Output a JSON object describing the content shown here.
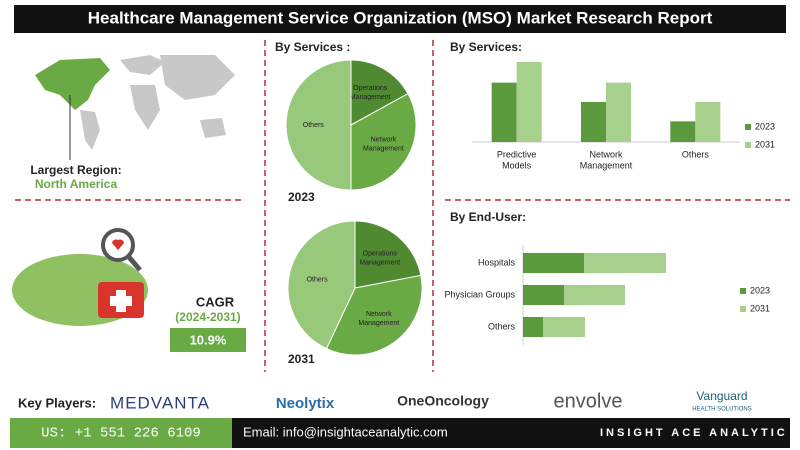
{
  "header": {
    "title": "Healthcare Management Service Organization (MSO) Market Research Report"
  },
  "region": {
    "label": "Largest Region:",
    "value": "North America"
  },
  "cagr": {
    "label": "CAGR",
    "period": "(2024-2031)",
    "value": "10.9%"
  },
  "key_players": {
    "label": "Key Players:",
    "names": [
      "MEDVANTA",
      "Neolytix",
      "OneOncology",
      "envolve",
      "Vanguard"
    ],
    "vanguard_sub": "HEALTH SOLUTIONS"
  },
  "footer": {
    "phone": "US: +1 551 226 6109",
    "email": "Email: info@insightaceanalytic.com",
    "brand": "INSIGHT ACE ANALYTIC"
  },
  "chart_data": [
    {
      "type": "pie",
      "title": "By Services :",
      "caption": "2023",
      "categories": [
        "Operations Management",
        "Network Management",
        "Others"
      ],
      "values": [
        17,
        33,
        50
      ],
      "colors": [
        "#4f8a30",
        "#6aaa45",
        "#98c97a"
      ]
    },
    {
      "type": "pie",
      "caption": "2031",
      "categories": [
        "Operations Management",
        "Network Management",
        "Others"
      ],
      "values": [
        22,
        35,
        43
      ],
      "colors": [
        "#4f8a30",
        "#6aaa45",
        "#98c97a"
      ]
    },
    {
      "type": "bar",
      "title": "By Services:",
      "categories": [
        "Predictive Models",
        "Network Management",
        "Others"
      ],
      "series": [
        {
          "name": "2023",
          "color": "#5a9a3c",
          "values": [
            46,
            31,
            16
          ]
        },
        {
          "name": "2031",
          "color": "#a8d08d",
          "values": [
            62,
            46,
            31
          ]
        }
      ],
      "legend": "right"
    },
    {
      "type": "hbar-stacked",
      "title": "By End-User:",
      "categories": [
        "Hospitals",
        "Physician Groups",
        "Others"
      ],
      "series": [
        {
          "name": "2023",
          "color": "#5a9a3c",
          "values": [
            61,
            41,
            20
          ]
        },
        {
          "name": "2031",
          "color": "#a8d08d",
          "values": [
            82,
            61,
            42
          ]
        }
      ],
      "legend": "right"
    }
  ]
}
